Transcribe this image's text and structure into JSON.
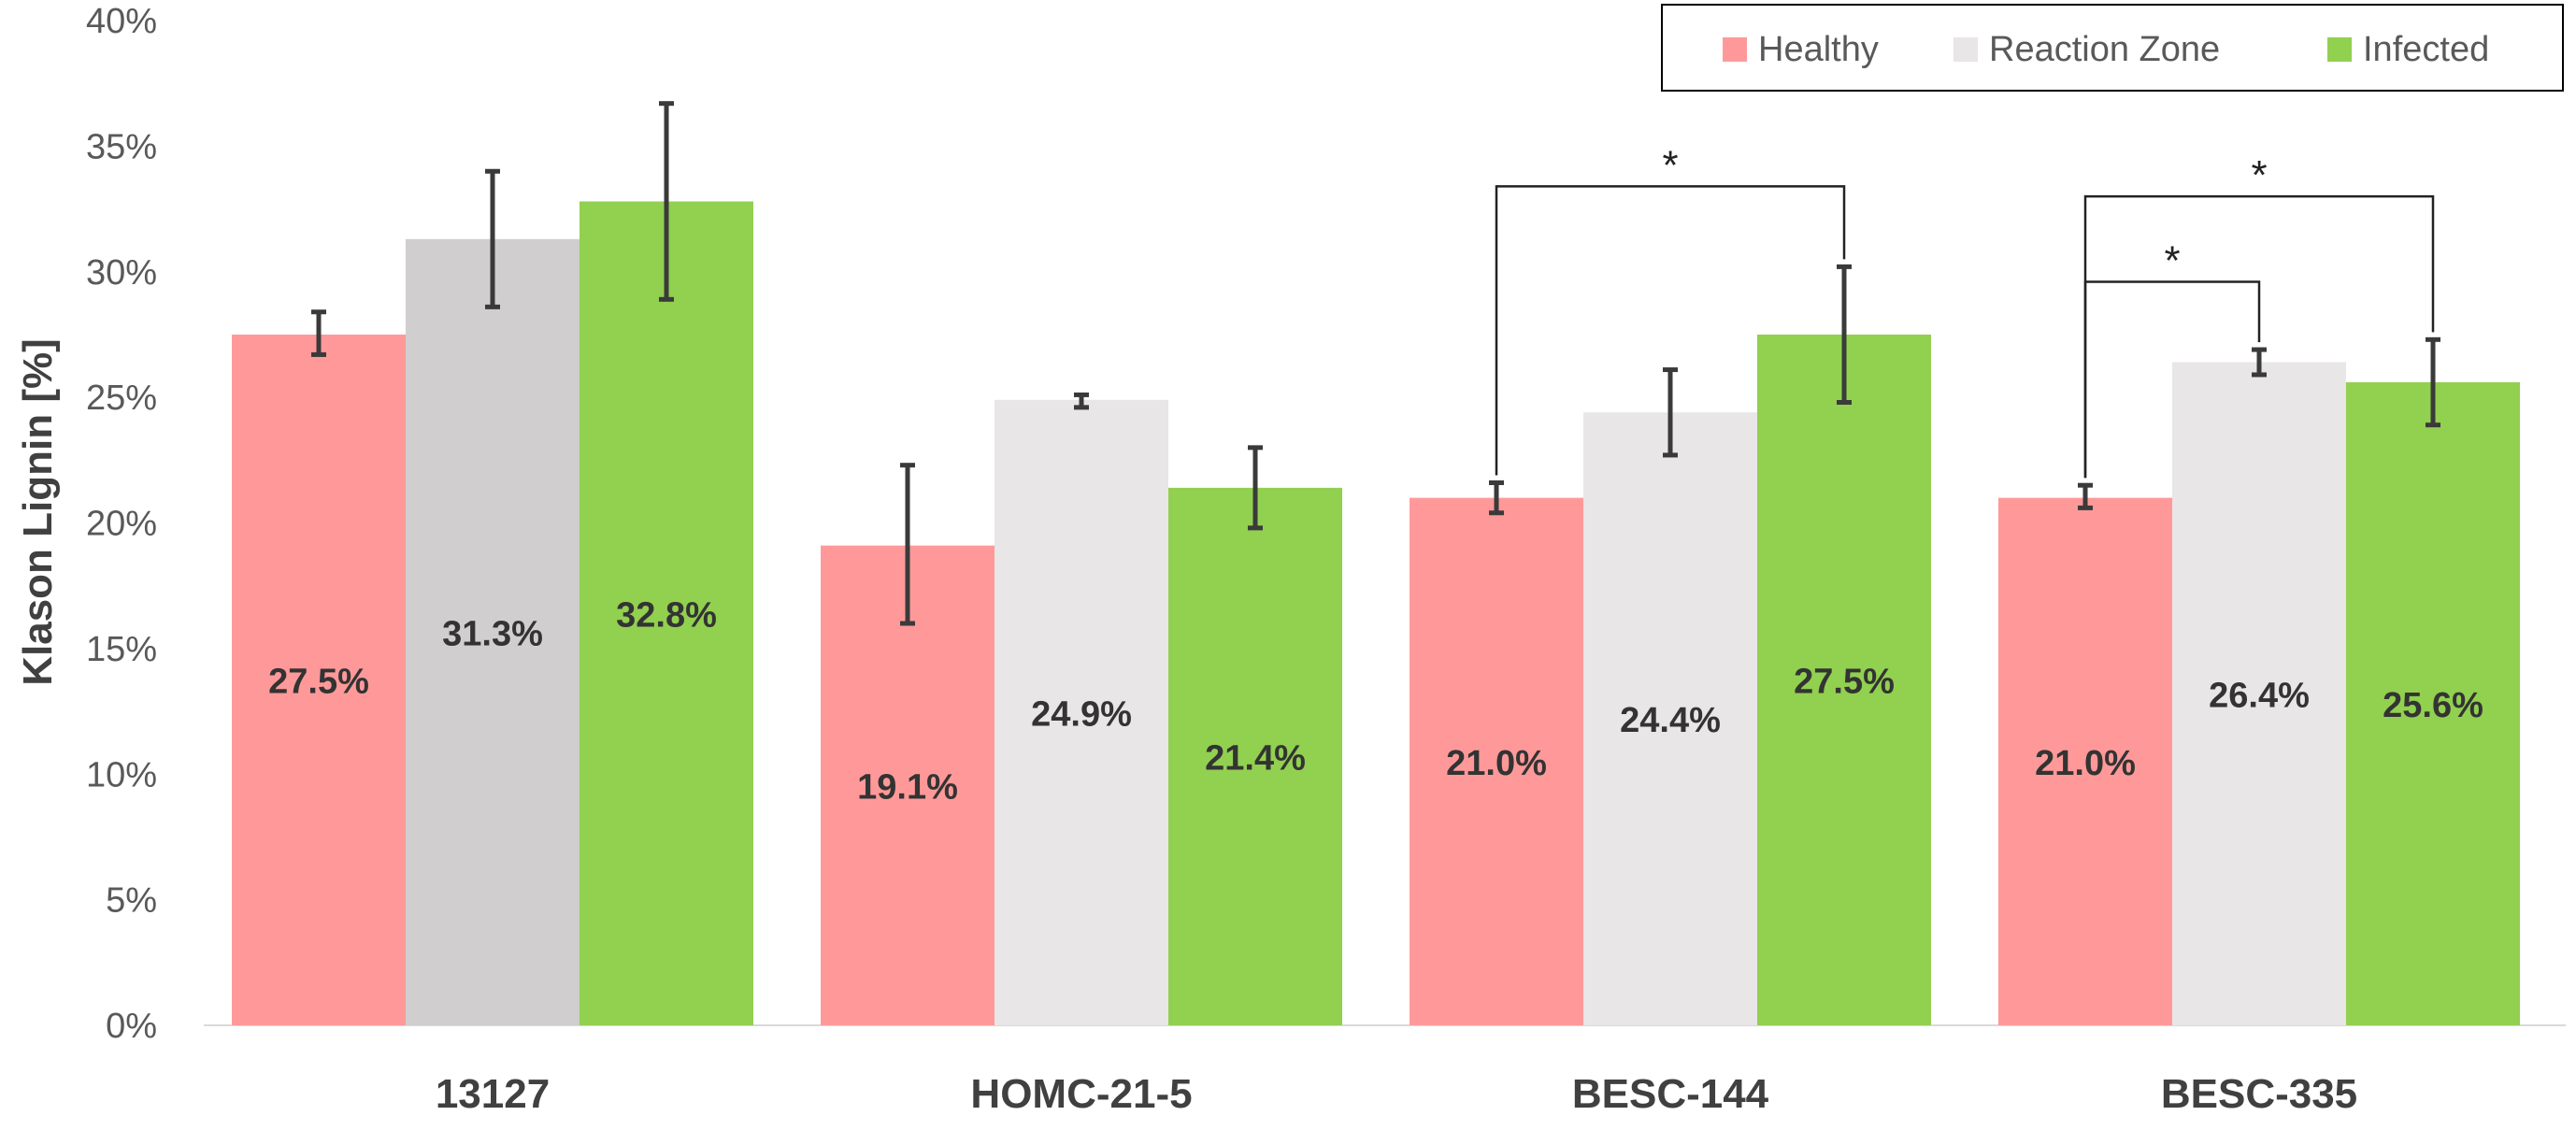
{
  "chart_data": {
    "type": "bar",
    "title": "",
    "xlabel": "",
    "ylabel": "Klason Lignin [%]",
    "ylim": [
      0,
      40
    ],
    "yticks": [
      0,
      5,
      10,
      15,
      20,
      25,
      30,
      35,
      40
    ],
    "ytick_labels": [
      "0%",
      "5%",
      "10%",
      "15%",
      "20%",
      "25%",
      "30%",
      "35%",
      "40%"
    ],
    "categories": [
      "13127",
      "HOMC-21-5",
      "BESC-144",
      "BESC-335"
    ],
    "legend_position": "top-right",
    "series": [
      {
        "name": "Healthy",
        "color": "#ff9999",
        "values": [
          27.5,
          19.1,
          21.0,
          21.0
        ],
        "labels": [
          "27.5%",
          "19.1%",
          "21.0%",
          "21.0%"
        ],
        "error_low": [
          26.7,
          16.0,
          20.4,
          20.6
        ],
        "error_high": [
          28.4,
          22.3,
          21.6,
          21.5
        ]
      },
      {
        "name": "Reaction Zone",
        "color": "#e8e6e6",
        "bar_colors": [
          "#d0cece",
          "#e8e6e6",
          "#e8e6e6",
          "#e8e6e6"
        ],
        "values": [
          31.3,
          24.9,
          24.4,
          26.4
        ],
        "labels": [
          "31.3%",
          "24.9%",
          "24.4%",
          "26.4%"
        ],
        "error_low": [
          28.6,
          24.6,
          22.7,
          25.9
        ],
        "error_high": [
          34.0,
          25.1,
          26.1,
          26.9
        ]
      },
      {
        "name": "Infected",
        "color": "#92d050",
        "values": [
          32.8,
          21.4,
          27.5,
          25.6
        ],
        "labels": [
          "32.8%",
          "21.4%",
          "27.5%",
          "25.6%"
        ],
        "error_low": [
          28.9,
          19.8,
          24.8,
          23.9
        ],
        "error_high": [
          36.7,
          23.0,
          30.2,
          27.3
        ]
      }
    ],
    "significance": [
      {
        "category": 2,
        "from_series": 0,
        "to_series": 2,
        "level": 33.4,
        "label": "*"
      },
      {
        "category": 3,
        "from_series": 0,
        "to_series": 1,
        "level": 29.6,
        "label": "*"
      },
      {
        "category": 3,
        "from_series": 0,
        "to_series": 2,
        "level": 33.0,
        "label": "*"
      }
    ]
  }
}
